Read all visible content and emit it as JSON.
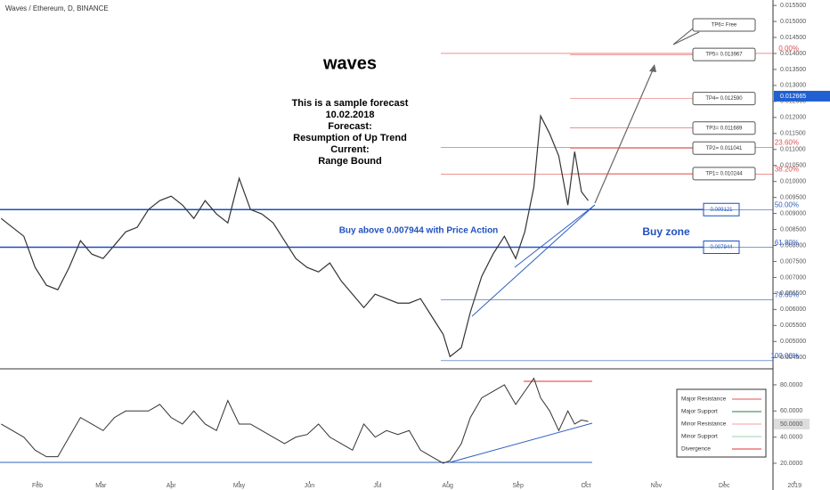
{
  "header": "Waves / Ethereum, D, BINANCE",
  "chart_data": [
    {
      "type": "line",
      "title": "waves",
      "annotations": [
        "This is a sample forecast",
        "10.02.2018",
        "Forecast:",
        "Resumption of Up Trend",
        "Current:",
        "Range Bound"
      ],
      "zone_text": "Buy above 0.007944 with Price Action",
      "zone_label": "Buy zone",
      "xlim": [
        14.5,
        355.5
      ],
      "xticks": [
        {
          "value": 31,
          "label": "Feb"
        },
        {
          "value": 59,
          "label": "Mar"
        },
        {
          "value": 90,
          "label": "Apr"
        },
        {
          "value": 120,
          "label": "May"
        },
        {
          "value": 151,
          "label": "Jun"
        },
        {
          "value": 181,
          "label": "Jul"
        },
        {
          "value": 212,
          "label": "Aug"
        },
        {
          "value": 243,
          "label": "Sep"
        },
        {
          "value": 273,
          "label": "Oct"
        },
        {
          "value": 304,
          "label": "Nov"
        },
        {
          "value": 334,
          "label": "Dec"
        },
        {
          "value": 365,
          "label": "2019"
        }
      ],
      "ylim": [
        0.0042,
        0.01567
      ],
      "yticks": [
        {
          "value": 0.0045,
          "label": "0.004500"
        },
        {
          "value": 0.005,
          "label": "0.005000"
        },
        {
          "value": 0.0055,
          "label": "0.005500"
        },
        {
          "value": 0.006,
          "label": "0.006000"
        },
        {
          "value": 0.0065,
          "label": "0.006500"
        },
        {
          "value": 0.007,
          "label": "0.007000"
        },
        {
          "value": 0.0075,
          "label": "0.007500"
        },
        {
          "value": 0.008,
          "label": "0.008000"
        },
        {
          "value": 0.0085,
          "label": "0.008500"
        },
        {
          "value": 0.009,
          "label": "0.009000"
        },
        {
          "value": 0.0095,
          "label": "0.009500"
        },
        {
          "value": 0.01,
          "label": "0.010000"
        },
        {
          "value": 0.0105,
          "label": "0.010500"
        },
        {
          "value": 0.011,
          "label": "0.011000"
        },
        {
          "value": 0.0115,
          "label": "0.011500"
        },
        {
          "value": 0.012,
          "label": "0.012000"
        },
        {
          "value": 0.0125,
          "label": "0.012500"
        },
        {
          "value": 0.013,
          "label": "0.013000"
        },
        {
          "value": 0.0135,
          "label": "0.013500"
        },
        {
          "value": 0.014,
          "label": "0.014000"
        },
        {
          "value": 0.0145,
          "label": "0.014500"
        },
        {
          "value": 0.015,
          "label": "0.015000"
        },
        {
          "value": 0.0155,
          "label": "0.015500"
        }
      ],
      "last_price": 0.012665,
      "x": [
        15,
        20,
        25,
        30,
        35,
        40,
        45,
        50,
        55,
        60,
        65,
        70,
        75,
        80,
        85,
        90,
        95,
        100,
        105,
        110,
        115,
        120,
        125,
        130,
        135,
        140,
        145,
        150,
        155,
        160,
        165,
        170,
        175,
        180,
        185,
        190,
        195,
        200,
        205,
        210,
        213,
        218,
        222,
        227,
        232,
        237,
        242,
        246,
        250,
        253,
        257,
        261,
        265,
        268,
        271,
        274
      ],
      "series": [
        {
          "color": "#333333",
          "values": [
            0.008844,
            0.008566,
            0.008287,
            0.007312,
            0.006755,
            0.006616,
            0.007312,
            0.008148,
            0.00773,
            0.007591,
            0.008009,
            0.008427,
            0.008566,
            0.009123,
            0.009401,
            0.00954,
            0.009262,
            0.008844,
            0.009401,
            0.008983,
            0.008705,
            0.010097,
            0.009123,
            0.008983,
            0.008705,
            0.008148,
            0.007591,
            0.007312,
            0.007173,
            0.007452,
            0.006894,
            0.006477,
            0.006059,
            0.006477,
            0.006337,
            0.006198,
            0.006198,
            0.006337,
            0.00578,
            0.005223,
            0.004527,
            0.004806,
            0.005919,
            0.007034,
            0.00773,
            0.008287,
            0.007591,
            0.008427,
            0.009819,
            0.012047,
            0.011489,
            0.010793,
            0.009262,
            0.010932,
            0.009679,
            0.009401
          ]
        }
      ],
      "fib": [
        {
          "label": "0.00%",
          "value": 0.014,
          "color": "#e05050"
        },
        {
          "label": "23.60%",
          "value": 0.01106,
          "color": "#e05050"
        },
        {
          "label": "38.20%",
          "value": 0.01023,
          "color": "#e05050"
        },
        {
          "label": "50.00%",
          "value": 0.00912,
          "color": "#3060c0"
        },
        {
          "label": "61.80%",
          "value": 0.00794,
          "color": "#3060c0"
        },
        {
          "label": "78.60%",
          "value": 0.0063,
          "color": "#3060c0"
        },
        {
          "label": "100.00%",
          "value": 0.0044,
          "color": "#3060c0"
        }
      ],
      "targets": [
        {
          "label": "TP6= Free"
        },
        {
          "label": "TP5= 0.013967",
          "value": 0.013967
        },
        {
          "label": "TP4= 0.012590",
          "value": 0.01259
        },
        {
          "label": "TP3= 0.011669",
          "value": 0.011669
        },
        {
          "label": "TP2= 0.011041",
          "value": 0.011041
        },
        {
          "label": "TP1= 0.010244",
          "value": 0.010244
        }
      ],
      "zone": [
        {
          "label": "0.009121",
          "value": 0.009121
        },
        {
          "label": "0.007944",
          "value": 0.007944
        }
      ]
    },
    {
      "type": "line",
      "ylim": [
        0.9,
        89.5
      ],
      "yticks": [
        {
          "value": 80,
          "label": "80.0000"
        },
        {
          "value": 60,
          "label": "60.0000"
        },
        {
          "value": 40,
          "label": "40.0000"
        },
        {
          "value": 20,
          "label": "20.0000"
        }
      ],
      "last_value": {
        "value": 50,
        "label": "50.0000"
      },
      "series": [
        {
          "color": "#333333",
          "values": [
            50,
            45,
            40,
            30,
            25,
            25,
            40,
            55,
            50,
            45,
            55,
            60,
            60,
            60,
            65,
            55,
            50,
            60,
            50,
            45,
            68,
            50,
            50,
            45,
            40,
            35,
            40,
            42,
            50,
            40,
            35,
            30,
            50,
            40,
            45,
            42,
            45,
            30,
            25,
            20,
            22,
            35,
            55,
            70,
            75,
            80,
            65,
            75,
            85,
            70,
            60,
            45,
            60,
            50,
            53,
            52
          ]
        }
      ],
      "legend": [
        {
          "name": "Major Resistance",
          "color": "#e05050"
        },
        {
          "name": "Major Support",
          "color": "#2a7a4a"
        },
        {
          "name": "Minor Resistance",
          "color": "#f0a0a0"
        },
        {
          "name": "Minor Support",
          "color": "#a0d0b0"
        },
        {
          "name": "Divergence",
          "color": "#e03030"
        }
      ]
    }
  ]
}
